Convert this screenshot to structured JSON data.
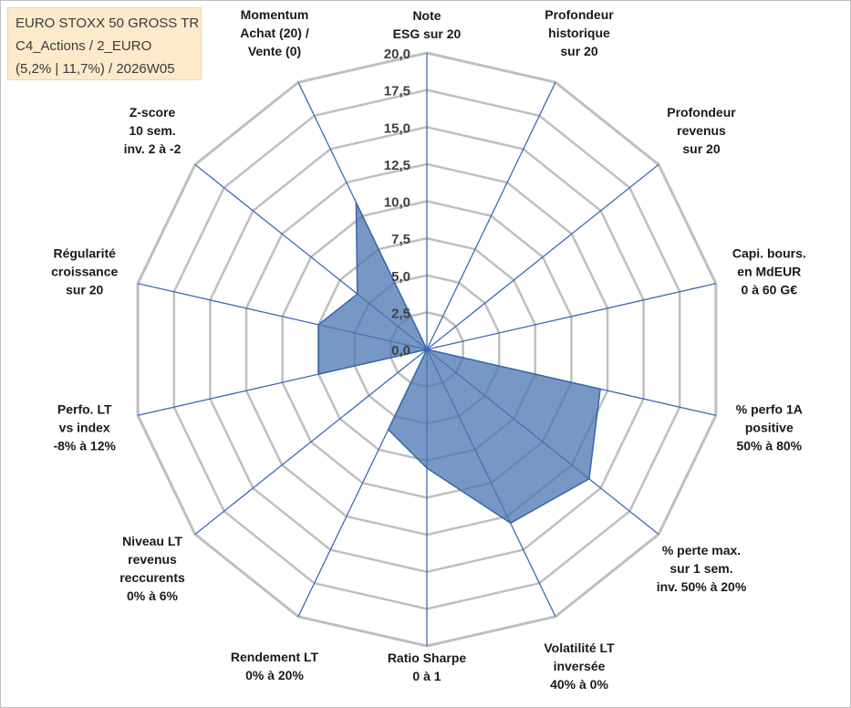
{
  "title_box": {
    "line1": "EURO STOXX 50 GROSS TR",
    "line2": "C4_Actions / 2_EURO",
    "line3": "(5,2% | 11,7%) / 2026W05"
  },
  "chart_data": {
    "type": "radar",
    "title": "",
    "legend": "none",
    "rmin": 0,
    "rmax": 20,
    "rticks": [
      "0,0",
      "2,5",
      "5,0",
      "7,5",
      "10,0",
      "12,5",
      "15,0",
      "17,5",
      "20,0"
    ],
    "rtick_values": [
      0,
      2.5,
      5,
      7.5,
      10,
      12.5,
      15,
      17.5,
      20
    ],
    "categories": [
      [
        "Note",
        "ESG sur 20"
      ],
      [
        "Profondeur",
        "historique",
        "sur 20"
      ],
      [
        "Profondeur",
        "revenus",
        "sur 20"
      ],
      [
        "Capi. bours.",
        "en MdEUR",
        "0 à 60 G€"
      ],
      [
        "% perfo 1A",
        "positive",
        "50% à 80%"
      ],
      [
        "% perte max.",
        "sur 1 sem.",
        "inv. 50% à 20%"
      ],
      [
        "Volatilité LT",
        "inversée",
        "40% à 0%"
      ],
      [
        "Ratio Sharpe",
        "0 à 1"
      ],
      [
        "Rendement LT",
        "0% à 20%"
      ],
      [
        "Niveau LT",
        "revenus",
        "reccurents",
        "0% à 6%"
      ],
      [
        "Perfo. LT",
        "vs index",
        "-8% à 12%"
      ],
      [
        "Régularité",
        "croissance",
        "sur 20"
      ],
      [
        "Z-score",
        "10 sem.",
        "inv. 2 à -2"
      ],
      [
        "Momentum",
        "Achat (20) /",
        "Vente (0)"
      ]
    ],
    "series": [
      {
        "name": "EURO STOXX 50 GROSS TR",
        "values": [
          0,
          0,
          0,
          0,
          12,
          14,
          13,
          8,
          6,
          0,
          7.5,
          7.5,
          6,
          11
        ],
        "color": "#4a76b0"
      }
    ],
    "colors": {
      "grid": "#bfbfbf",
      "spoke": "#3e6bb5",
      "fill": "#4a76b0",
      "stroke": "#3a66a8"
    }
  }
}
